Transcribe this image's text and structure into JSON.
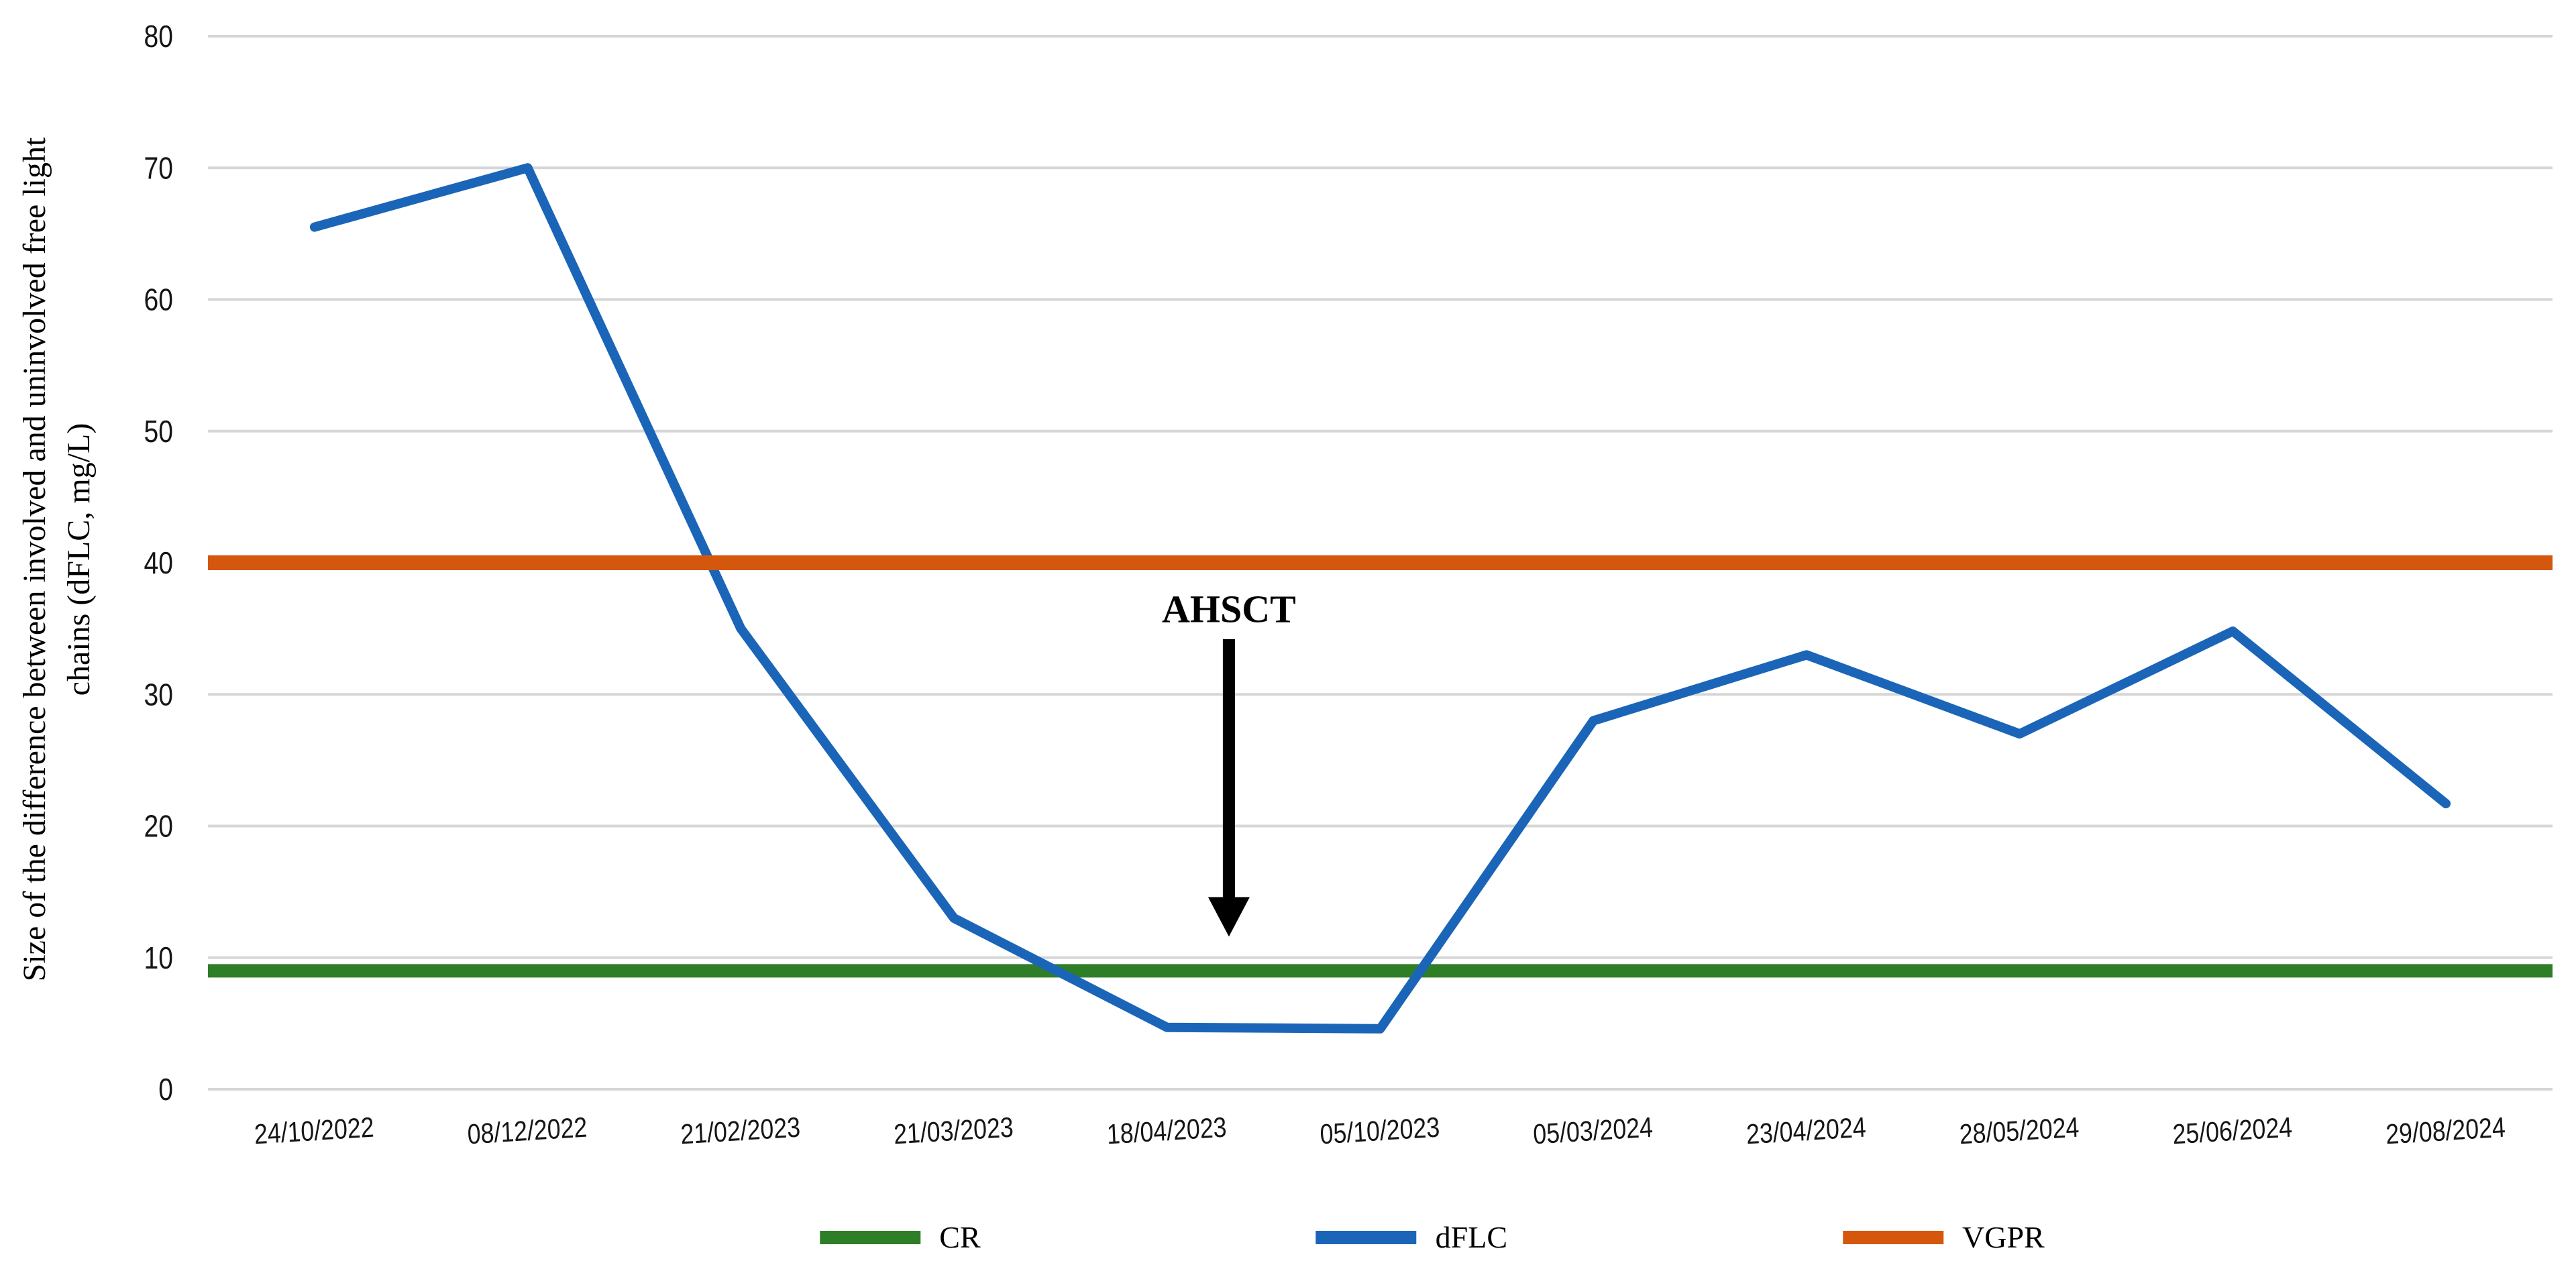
{
  "chart_data": {
    "type": "line",
    "title": "",
    "ylabel": "Size of the difference between involved and uninvolved free light chains (dFLC, mg/L)",
    "ylabel_lines": [
      "Size of the difference between involved and uninvolved free light",
      "chains (dFLC, mg/L)"
    ],
    "xlabel": "",
    "categories": [
      "24/10/2022",
      "08/12/2022",
      "21/02/2023",
      "21/03/2023",
      "18/04/2023",
      "05/10/2023",
      "05/03/2024",
      "23/04/2024",
      "28/05/2024",
      "25/06/2024",
      "29/08/2024"
    ],
    "series": [
      {
        "name": "CR",
        "type": "reference",
        "value": 9,
        "color": "#2E7D27"
      },
      {
        "name": "dFLC",
        "type": "data",
        "values": [
          65.5,
          70,
          35,
          13,
          4.7,
          4.6,
          28,
          33,
          27,
          34.8,
          21.7
        ],
        "color": "#1B65B8"
      },
      {
        "name": "VGPR",
        "type": "reference",
        "value": 40,
        "color": "#D5570D"
      }
    ],
    "ylim": [
      0,
      80
    ],
    "ystep": 10,
    "grid": "horizontal",
    "gridline_color": "#D6D6D6",
    "legend_position": "bottom",
    "legend": [
      {
        "label": "CR",
        "color": "#2E7D27"
      },
      {
        "label": "dFLC",
        "color": "#1B65B8"
      },
      {
        "label": "VGPR",
        "color": "#D5570D"
      }
    ],
    "annotation": {
      "label": "AHSCT",
      "x_index": 4.29,
      "label_value": 35.5,
      "arrow_start_value": 34.2,
      "arrow_head_value": 14.6,
      "arrow_tip_value": 11.6
    }
  }
}
